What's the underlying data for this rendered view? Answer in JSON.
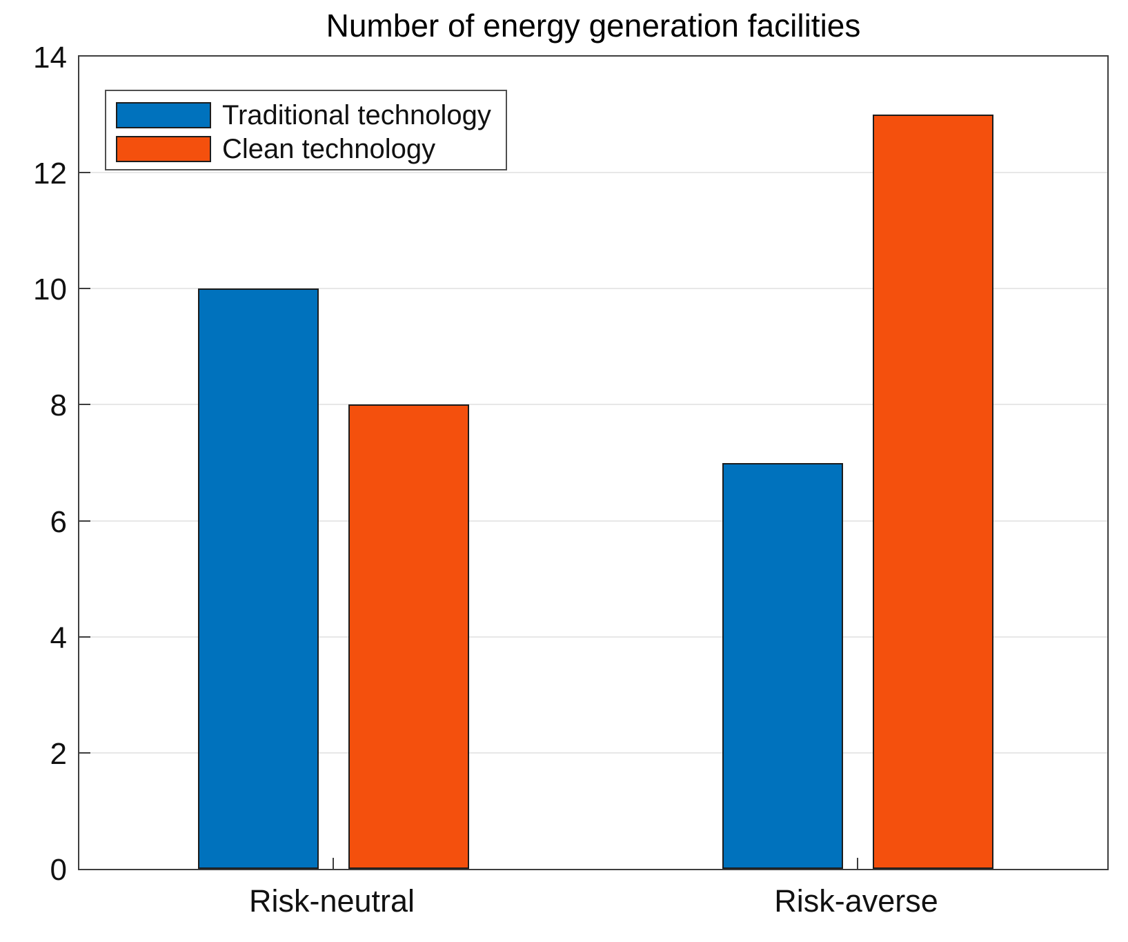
{
  "figure": {
    "title": "Number of energy generation facilities"
  },
  "chart_data": {
    "type": "bar",
    "title": "Number of energy generation facilities",
    "categories": [
      "Risk-neutral",
      "Risk-averse"
    ],
    "series": [
      {
        "name": "Traditional technology",
        "color": "#0072BD",
        "values": [
          10,
          7
        ]
      },
      {
        "name": "Clean technology",
        "color": "#F4500D",
        "values": [
          8,
          13
        ]
      }
    ],
    "xlabel": "",
    "ylabel": "",
    "ylim": [
      0,
      14
    ],
    "yticks": [
      0,
      2,
      4,
      6,
      8,
      10,
      12,
      14
    ],
    "grid": "horizontal",
    "legend_position": "top-left",
    "bar_edge_color": "#1c1c1c",
    "gridline_color": "#e7e7e7",
    "axis_color": "#3d3d3d"
  }
}
